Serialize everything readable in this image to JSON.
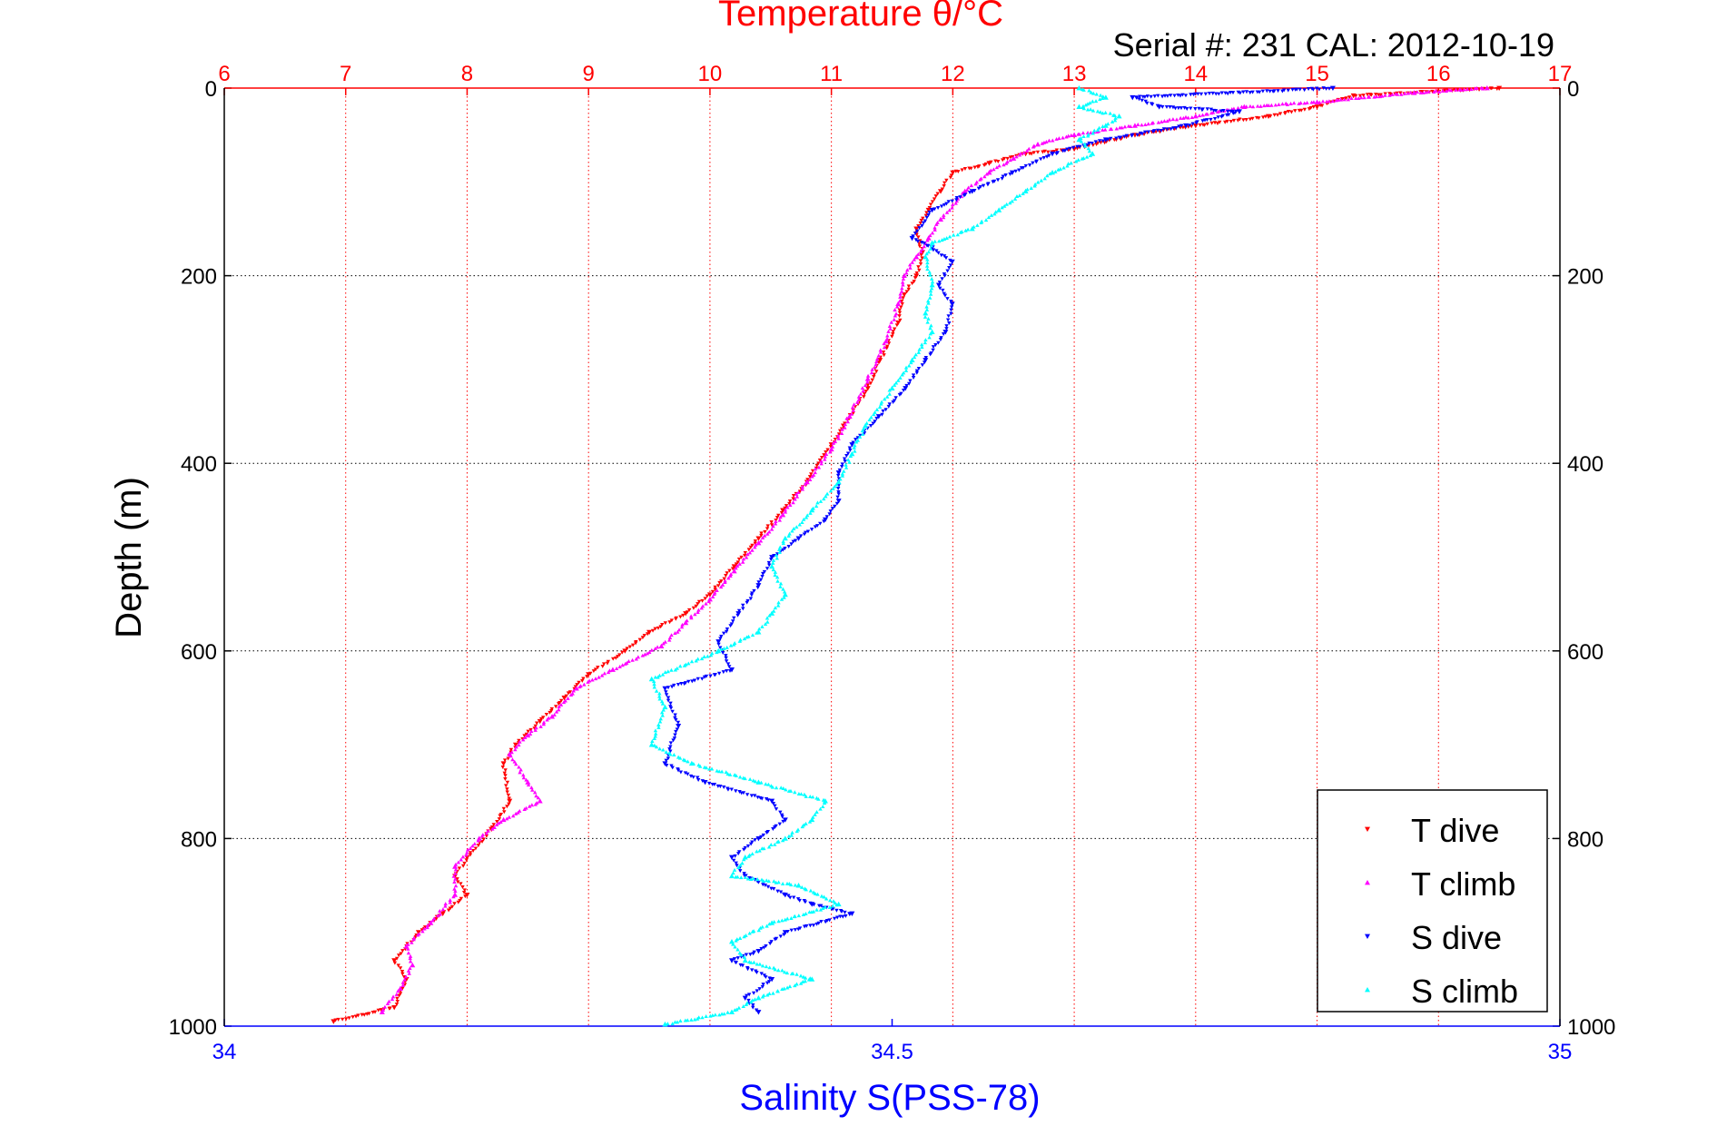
{
  "chart_data": {
    "type": "scatter",
    "title": "Temperature θ/°C",
    "subtitle": "Serial #: 231  CAL: 2012-10-19",
    "xlabel": "Salinity S(PSS-78)",
    "ylabel": "Depth (m)",
    "temperature_axis": {
      "range": [
        6,
        17
      ],
      "ticks": [
        "6",
        "7",
        "8",
        "9",
        "10",
        "11",
        "12",
        "13",
        "14",
        "15",
        "16",
        "17"
      ],
      "color": "#ff0000"
    },
    "salinity_axis": {
      "range": [
        34,
        35
      ],
      "ticks": [
        "34",
        "34.5",
        "35"
      ],
      "color": "#0000ff"
    },
    "depth_axis": {
      "range": [
        0,
        1000
      ],
      "reversed": true,
      "ticks": [
        "0",
        "200",
        "400",
        "600",
        "800",
        "1000"
      ]
    },
    "grid": true,
    "legend_position": "bottom-right",
    "series": [
      {
        "name": "T dive",
        "axis": "temperature",
        "marker": "triangle-down",
        "color": "#ff0000",
        "points": [
          [
            16.5,
            0
          ],
          [
            15.3,
            8
          ],
          [
            15.0,
            20
          ],
          [
            14.6,
            30
          ],
          [
            14.0,
            40
          ],
          [
            13.5,
            50
          ],
          [
            13.0,
            65
          ],
          [
            12.6,
            70
          ],
          [
            12.3,
            80
          ],
          [
            12.0,
            90
          ],
          [
            11.9,
            110
          ],
          [
            11.8,
            130
          ],
          [
            11.7,
            150
          ],
          [
            11.75,
            175
          ],
          [
            11.7,
            200
          ],
          [
            11.6,
            220
          ],
          [
            11.55,
            250
          ],
          [
            11.4,
            290
          ],
          [
            11.3,
            320
          ],
          [
            11.1,
            360
          ],
          [
            11.0,
            380
          ],
          [
            10.8,
            420
          ],
          [
            10.6,
            450
          ],
          [
            10.4,
            480
          ],
          [
            10.2,
            510
          ],
          [
            10.0,
            540
          ],
          [
            9.8,
            560
          ],
          [
            9.5,
            580
          ],
          [
            9.3,
            600
          ],
          [
            9.0,
            625
          ],
          [
            8.8,
            650
          ],
          [
            8.6,
            675
          ],
          [
            8.4,
            700
          ],
          [
            8.3,
            720
          ],
          [
            8.35,
            760
          ],
          [
            8.2,
            790
          ],
          [
            8.0,
            820
          ],
          [
            7.9,
            840
          ],
          [
            8.0,
            860
          ],
          [
            7.8,
            880
          ],
          [
            7.6,
            900
          ],
          [
            7.4,
            930
          ],
          [
            7.5,
            950
          ],
          [
            7.4,
            980
          ],
          [
            6.9,
            995
          ]
        ]
      },
      {
        "name": "T climb",
        "axis": "temperature",
        "marker": "triangle-up",
        "color": "#ff00ff",
        "points": [
          [
            16.4,
            0
          ],
          [
            15.8,
            5
          ],
          [
            15.0,
            15
          ],
          [
            14.4,
            20
          ],
          [
            14.0,
            30
          ],
          [
            13.5,
            40
          ],
          [
            13.0,
            50
          ],
          [
            12.7,
            60
          ],
          [
            12.5,
            75
          ],
          [
            12.3,
            90
          ],
          [
            12.1,
            110
          ],
          [
            11.9,
            140
          ],
          [
            11.8,
            160
          ],
          [
            11.7,
            180
          ],
          [
            11.6,
            200
          ],
          [
            11.55,
            230
          ],
          [
            11.45,
            270
          ],
          [
            11.3,
            310
          ],
          [
            11.15,
            350
          ],
          [
            11.0,
            385
          ],
          [
            10.8,
            420
          ],
          [
            10.6,
            455
          ],
          [
            10.4,
            485
          ],
          [
            10.2,
            515
          ],
          [
            10.0,
            545
          ],
          [
            9.8,
            570
          ],
          [
            9.6,
            595
          ],
          [
            9.2,
            620
          ],
          [
            8.9,
            640
          ],
          [
            8.7,
            670
          ],
          [
            8.5,
            690
          ],
          [
            8.35,
            710
          ],
          [
            8.5,
            740
          ],
          [
            8.6,
            760
          ],
          [
            8.3,
            780
          ],
          [
            8.1,
            800
          ],
          [
            7.9,
            830
          ],
          [
            7.9,
            860
          ],
          [
            7.7,
            890
          ],
          [
            7.5,
            915
          ],
          [
            7.55,
            935
          ],
          [
            7.45,
            960
          ],
          [
            7.3,
            985
          ]
        ]
      },
      {
        "name": "S dive",
        "axis": "salinity",
        "marker": "triangle-down",
        "color": "#0000ff",
        "points": [
          [
            34.83,
            0
          ],
          [
            34.68,
            10
          ],
          [
            34.7,
            20
          ],
          [
            34.76,
            25
          ],
          [
            34.72,
            40
          ],
          [
            34.66,
            55
          ],
          [
            34.62,
            70
          ],
          [
            34.59,
            90
          ],
          [
            34.56,
            110
          ],
          [
            34.53,
            130
          ],
          [
            34.515,
            160
          ],
          [
            34.53,
            170
          ],
          [
            34.545,
            185
          ],
          [
            34.535,
            210
          ],
          [
            34.545,
            230
          ],
          [
            34.54,
            260
          ],
          [
            34.525,
            290
          ],
          [
            34.51,
            320
          ],
          [
            34.49,
            350
          ],
          [
            34.47,
            380
          ],
          [
            34.46,
            410
          ],
          [
            34.46,
            440
          ],
          [
            34.45,
            460
          ],
          [
            34.43,
            480
          ],
          [
            34.41,
            500
          ],
          [
            34.4,
            530
          ],
          [
            34.385,
            560
          ],
          [
            34.37,
            590
          ],
          [
            34.38,
            620
          ],
          [
            34.33,
            640
          ],
          [
            34.34,
            680
          ],
          [
            34.33,
            720
          ],
          [
            34.36,
            740
          ],
          [
            34.41,
            760
          ],
          [
            34.42,
            780
          ],
          [
            34.4,
            800
          ],
          [
            34.38,
            820
          ],
          [
            34.39,
            840
          ],
          [
            34.42,
            860
          ],
          [
            34.44,
            870
          ],
          [
            34.47,
            880
          ],
          [
            34.42,
            900
          ],
          [
            34.4,
            920
          ],
          [
            34.38,
            930
          ],
          [
            34.41,
            950
          ],
          [
            34.39,
            970
          ],
          [
            34.4,
            985
          ]
        ]
      },
      {
        "name": "S climb",
        "axis": "salinity",
        "marker": "triangle-up",
        "color": "#00ffff",
        "points": [
          [
            34.64,
            0
          ],
          [
            34.66,
            10
          ],
          [
            34.64,
            20
          ],
          [
            34.67,
            30
          ],
          [
            34.66,
            40
          ],
          [
            34.64,
            55
          ],
          [
            34.65,
            70
          ],
          [
            34.62,
            90
          ],
          [
            34.6,
            110
          ],
          [
            34.58,
            130
          ],
          [
            34.56,
            150
          ],
          [
            34.53,
            165
          ],
          [
            34.525,
            180
          ],
          [
            34.53,
            210
          ],
          [
            34.525,
            240
          ],
          [
            34.53,
            260
          ],
          [
            34.515,
            290
          ],
          [
            34.5,
            320
          ],
          [
            34.48,
            360
          ],
          [
            34.47,
            390
          ],
          [
            34.46,
            420
          ],
          [
            34.44,
            450
          ],
          [
            34.42,
            480
          ],
          [
            34.41,
            510
          ],
          [
            34.42,
            540
          ],
          [
            34.41,
            560
          ],
          [
            34.4,
            580
          ],
          [
            34.37,
            600
          ],
          [
            34.32,
            630
          ],
          [
            34.33,
            660
          ],
          [
            34.32,
            700
          ],
          [
            34.35,
            720
          ],
          [
            34.4,
            740
          ],
          [
            34.45,
            760
          ],
          [
            34.44,
            780
          ],
          [
            34.42,
            800
          ],
          [
            34.39,
            820
          ],
          [
            34.38,
            840
          ],
          [
            34.43,
            850
          ],
          [
            34.46,
            870
          ],
          [
            34.41,
            890
          ],
          [
            34.38,
            910
          ],
          [
            34.39,
            930
          ],
          [
            34.44,
            950
          ],
          [
            34.4,
            970
          ],
          [
            34.38,
            985
          ],
          [
            34.33,
            998
          ]
        ]
      }
    ]
  }
}
